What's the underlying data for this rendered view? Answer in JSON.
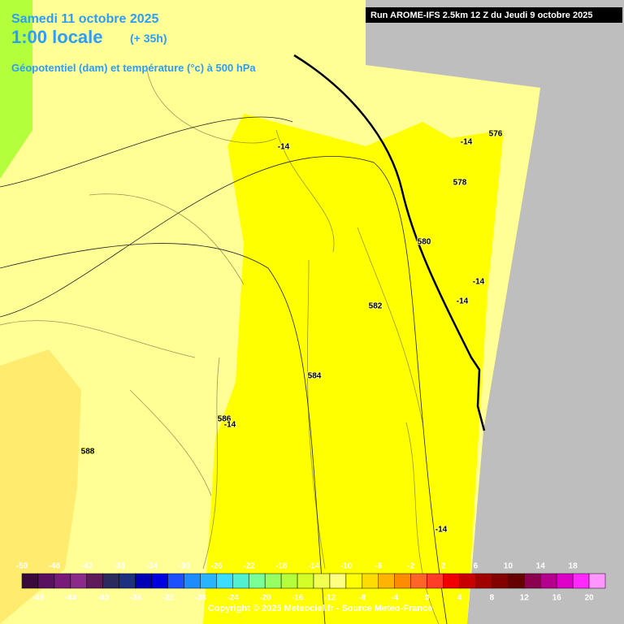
{
  "header": {
    "date": "Samedi 11 octobre 2025",
    "time": "1:00 locale",
    "lead": "(+ 35h)",
    "parameter": "Géopotentiel (dam) et température (°c) à 500 hPa",
    "run": "Run AROME-IFS 2.5km 12 Z du Jeudi 9 octobre 2025"
  },
  "contour_labels": [
    "-14",
    "576",
    "-14",
    "578",
    "580",
    "-14",
    "-14",
    "582",
    "584",
    "586",
    "-14",
    "588",
    "-14"
  ],
  "legend": {
    "values": [
      -50,
      -48,
      -46,
      -44,
      -42,
      -40,
      -38,
      -36,
      -34,
      -32,
      -30,
      -28,
      -26,
      -24,
      -22,
      -20,
      -18,
      -16,
      -14,
      -12,
      -10,
      -8,
      -6,
      -4,
      -2,
      0,
      2,
      4,
      6,
      8,
      10,
      12,
      14,
      16,
      18,
      20
    ],
    "colors": [
      "#3a0a3c",
      "#5a1060",
      "#781a78",
      "#8a2a8a",
      "#5e1a5a",
      "#2a2a5e",
      "#1e3080",
      "#0000b4",
      "#0000e0",
      "#1e50ff",
      "#1e8cff",
      "#28b4ff",
      "#3cdcff",
      "#50f0d0",
      "#78ff96",
      "#96ff64",
      "#b4ff3c",
      "#d2ff28",
      "#f0ff50",
      "#ffff82",
      "#ffff00",
      "#ffdc00",
      "#ffb400",
      "#ff8c00",
      "#ff6428",
      "#ff3c28",
      "#f00000",
      "#c80000",
      "#a00000",
      "#820000",
      "#640000",
      "#8c0050",
      "#b4008c",
      "#dc00c8",
      "#ff28ff",
      "#ff96ff"
    ]
  },
  "footer": "Copyright © 2025 Meteociel.fr - Source Meteo-France"
}
